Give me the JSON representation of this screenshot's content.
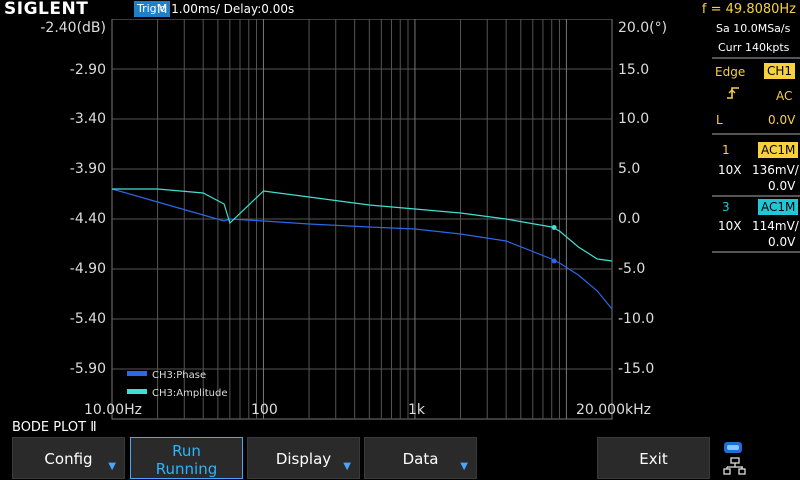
{
  "topbar": {
    "brand": "SIGLENT",
    "trigger_status": "Trig'd",
    "timebase": "M 1.00ms/ Delay:0.00s",
    "frequency": "f = 49.8080Hz"
  },
  "plot": {
    "left_axis_labels": [
      "-2.40(dB)",
      "-2.90",
      "-3.40",
      "-3.90",
      "-4.40",
      "-4.90",
      "-5.40",
      "-5.90"
    ],
    "right_axis_labels": [
      "20.0(°)",
      "15.0",
      "10.0",
      "5.0",
      "0.0",
      "-5.0",
      "-10.0",
      "-15.0"
    ],
    "x_axis_labels": [
      "10.00Hz",
      "100",
      "1k",
      "20.000kHz"
    ],
    "legend": [
      {
        "label": "CH3:Phase",
        "color": "#2b67e8"
      },
      {
        "label": "CH3:Amplitude",
        "color": "#3fe0d0"
      }
    ]
  },
  "chart_data": {
    "type": "line",
    "x_scale": "log",
    "xlim": [
      10,
      20000
    ],
    "ylim_left_db": [
      -6.4,
      -2.4
    ],
    "ylim_right_deg": [
      -20,
      20
    ],
    "x": [
      10,
      20,
      40,
      55,
      60,
      100,
      200,
      500,
      1000,
      2000,
      4000,
      8000,
      9000,
      12000,
      16000,
      20000
    ],
    "series": [
      {
        "name": "CH3:Phase",
        "axis": "left",
        "color": "#2b67e8",
        "values": [
          -4.1,
          -4.23,
          -4.36,
          -4.42,
          -4.4,
          -4.42,
          -4.45,
          -4.48,
          -4.5,
          -4.55,
          -4.62,
          -4.8,
          -4.84,
          -4.96,
          -5.12,
          -5.3
        ]
      },
      {
        "name": "CH3:Amplitude",
        "axis": "right",
        "color": "#3fe0d0",
        "values": [
          3.0,
          3.0,
          2.6,
          1.5,
          -0.4,
          2.8,
          2.2,
          1.4,
          1.0,
          0.6,
          0.0,
          -0.8,
          -1.2,
          -2.8,
          -4.0,
          -4.2
        ]
      }
    ],
    "markers": [
      {
        "series": "CH3:Phase",
        "x": 8300,
        "y": -4.82
      },
      {
        "series": "CH3:Amplitude",
        "x": 8300,
        "y": -0.85
      }
    ],
    "grid": true,
    "legend_position": "bottom-left"
  },
  "side": {
    "sample_rate": "Sa 10.0MSa/s",
    "memory": "Curr 140kpts",
    "trigger_type": "Edge",
    "trigger_source": "CH1",
    "coupling": "AC",
    "level_label": "L",
    "level_value": "0.0V",
    "ch1": {
      "num": "1",
      "tag": "AC1M",
      "probe": "10X",
      "vdiv": "136mV/",
      "offset": "0.0V"
    },
    "ch3": {
      "num": "3",
      "tag": "AC1M",
      "probe": "10X",
      "vdiv": "114mV/",
      "offset": "0.0V"
    }
  },
  "bottom": {
    "mode_label": "BODE PLOT Ⅱ",
    "buttons": {
      "config": "Config",
      "run_line1": "Run",
      "run_line2": "Running",
      "display": "Display",
      "data": "Data",
      "exit": "Exit"
    }
  }
}
